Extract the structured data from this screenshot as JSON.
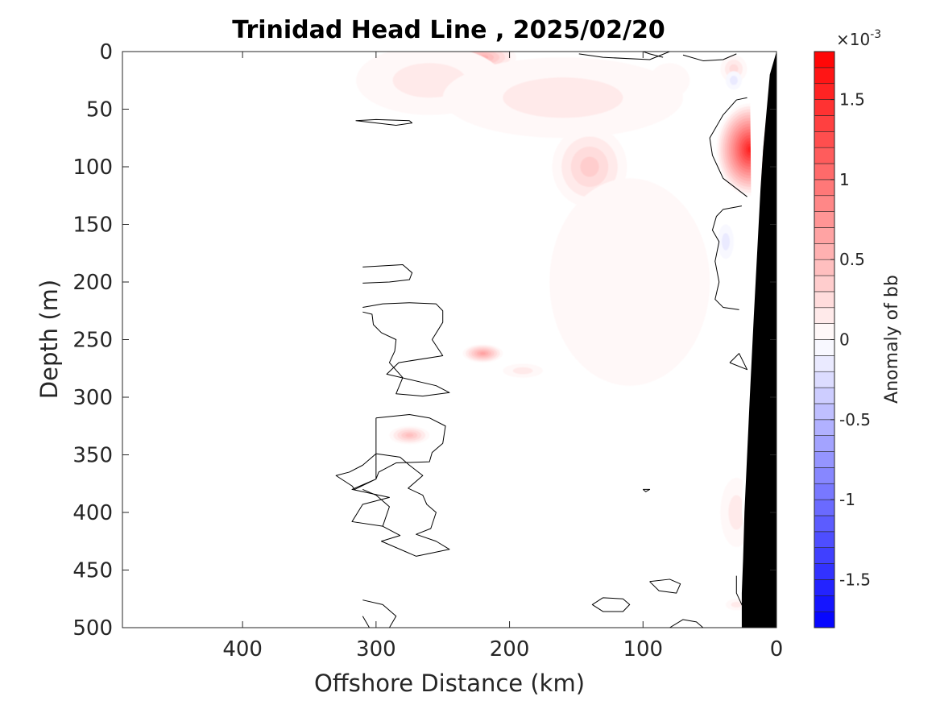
{
  "chart_data": {
    "type": "contourf",
    "title": "Trinidad Head Line , 2025/02/20",
    "xlabel": "Offshore Distance (km)",
    "ylabel": "Depth (m)",
    "xlim": [
      490,
      0
    ],
    "ylim": [
      0,
      500
    ],
    "x_reversed": true,
    "y_reversed": true,
    "x_ticks": [
      400,
      300,
      200,
      100,
      0
    ],
    "y_ticks": [
      0,
      50,
      100,
      150,
      200,
      250,
      300,
      350,
      400,
      450,
      500
    ],
    "x_tick_labels": [
      "400",
      "300",
      "200",
      "100",
      "0"
    ],
    "y_tick_labels": [
      "0",
      "50",
      "100",
      "150",
      "200",
      "250",
      "300",
      "350",
      "400",
      "450",
      "500"
    ],
    "data_extent_km": [
      0,
      310
    ],
    "colorbar": {
      "label": "Anomaly of bb",
      "exponent_label": "×10",
      "exponent_power": "-3",
      "limits": [
        -1.8,
        1.8
      ],
      "ticks": [
        -1.5,
        -1,
        -0.5,
        0,
        0.5,
        1,
        1.5
      ],
      "tick_labels": [
        "-1.5",
        "-1",
        "-0.5",
        "0",
        "0.5",
        "1",
        "1.5"
      ],
      "levels": 36,
      "colormap": "blue-white-red",
      "negative_color": "#0000ff",
      "positive_color": "#ff0000",
      "neutral_color": "#ffffff"
    },
    "anomaly_features": [
      {
        "x_km": 220,
        "depth_m": 5,
        "value": 0.6,
        "rx_km": 25,
        "ry_m": 12
      },
      {
        "x_km": 260,
        "depth_m": 25,
        "value": 0.2,
        "rx_km": 55,
        "ry_m": 30
      },
      {
        "x_km": 160,
        "depth_m": 40,
        "value": 0.15,
        "rx_km": 90,
        "ry_m": 35
      },
      {
        "x_km": 140,
        "depth_m": 100,
        "value": 0.35,
        "rx_km": 28,
        "ry_m": 35
      },
      {
        "x_km": 110,
        "depth_m": 200,
        "value": 0.1,
        "rx_km": 60,
        "ry_m": 90
      },
      {
        "x_km": 20,
        "depth_m": 85,
        "value": 1.6,
        "rx_km": 25,
        "ry_m": 40
      },
      {
        "x_km": 32,
        "depth_m": 15,
        "value": 0.25,
        "rx_km": 10,
        "ry_m": 12
      },
      {
        "x_km": 80,
        "depth_m": 25,
        "value": 0.1,
        "rx_km": 15,
        "ry_m": 15
      },
      {
        "x_km": 220,
        "depth_m": 262,
        "value": 0.7,
        "rx_km": 15,
        "ry_m": 8
      },
      {
        "x_km": 275,
        "depth_m": 333,
        "value": 0.45,
        "rx_km": 15,
        "ry_m": 8
      },
      {
        "x_km": 190,
        "depth_m": 277,
        "value": 0.15,
        "rx_km": 15,
        "ry_m": 6
      },
      {
        "x_km": 30,
        "depth_m": 400,
        "value": 0.12,
        "rx_km": 12,
        "ry_m": 30
      },
      {
        "x_km": 30,
        "depth_m": 480,
        "value": 0.2,
        "rx_km": 8,
        "ry_m": 5
      },
      {
        "x_km": 32,
        "depth_m": 25,
        "value": -0.15,
        "rx_km": 6,
        "ry_m": 8
      },
      {
        "x_km": 38,
        "depth_m": 165,
        "value": -0.2,
        "rx_km": 6,
        "ry_m": 15
      }
    ],
    "zero_contours": [
      [
        [
          310,
          187
        ],
        [
          280,
          185
        ],
        [
          273,
          192
        ],
        [
          275,
          198
        ],
        [
          290,
          200
        ],
        [
          310,
          201
        ]
      ],
      [
        [
          310,
          222
        ],
        [
          295,
          219
        ],
        [
          275,
          218
        ],
        [
          255,
          219
        ],
        [
          250,
          225
        ],
        [
          250,
          235
        ],
        [
          258,
          250
        ],
        [
          250,
          264
        ],
        [
          283,
          270
        ],
        [
          292,
          280
        ],
        [
          255,
          290
        ],
        [
          245,
          296
        ],
        [
          265,
          299
        ],
        [
          285,
          297
        ],
        [
          280,
          283
        ],
        [
          290,
          270
        ],
        [
          286,
          260
        ],
        [
          285,
          250
        ],
        [
          296,
          244
        ],
        [
          302,
          237
        ],
        [
          303,
          228
        ],
        [
          310,
          226
        ]
      ],
      [
        [
          310,
          247
        ]
      ],
      [
        [
          275,
          60
        ],
        [
          300,
          59
        ],
        [
          315,
          60
        ],
        [
          300,
          62
        ],
        [
          285,
          64
        ],
        [
          273,
          62
        ],
        [
          275,
          60
        ]
      ],
      [
        [
          300,
          318
        ],
        [
          275,
          315
        ],
        [
          260,
          318
        ],
        [
          248,
          325
        ],
        [
          250,
          340
        ],
        [
          258,
          348
        ],
        [
          260,
          356
        ],
        [
          285,
          357
        ],
        [
          298,
          365
        ],
        [
          300,
          371
        ],
        [
          318,
          380
        ],
        [
          290,
          387
        ],
        [
          310,
          393
        ],
        [
          318,
          408
        ],
        [
          295,
          412
        ],
        [
          282,
          420
        ],
        [
          296,
          425
        ],
        [
          270,
          438
        ],
        [
          245,
          432
        ],
        [
          255,
          425
        ],
        [
          270,
          419
        ],
        [
          259,
          414
        ],
        [
          255,
          400
        ],
        [
          262,
          393
        ],
        [
          265,
          385
        ],
        [
          276,
          379
        ],
        [
          265,
          368
        ],
        [
          275,
          359
        ],
        [
          282,
          352
        ],
        [
          300,
          349
        ],
        [
          310,
          359
        ],
        [
          320,
          365
        ],
        [
          330,
          368
        ],
        [
          318,
          377
        ],
        [
          316,
          380
        ],
        [
          300,
          371
        ],
        [
          300,
          318
        ]
      ],
      [
        [
          310,
          380
        ],
        [
          300,
          385
        ],
        [
          290,
          395
        ],
        [
          295,
          412
        ]
      ],
      [
        [
          310,
          476
        ],
        [
          295,
          480
        ],
        [
          285,
          490
        ],
        [
          290,
          500
        ]
      ],
      [
        [
          310,
          490
        ],
        [
          305,
          500
        ]
      ],
      [
        [
          130,
          474
        ],
        [
          115,
          475
        ],
        [
          110,
          480
        ],
        [
          115,
          486
        ],
        [
          130,
          486
        ],
        [
          138,
          480
        ],
        [
          130,
          474
        ]
      ],
      [
        [
          95,
          460
        ],
        [
          80,
          458
        ],
        [
          72,
          462
        ],
        [
          75,
          470
        ],
        [
          88,
          468
        ],
        [
          95,
          460
        ]
      ],
      [
        [
          100,
          380
        ],
        [
          95,
          380
        ],
        [
          98,
          382
        ],
        [
          100,
          380
        ]
      ],
      [
        [
          80,
          500
        ],
        [
          70,
          493
        ],
        [
          60,
          495
        ],
        [
          55,
          500
        ]
      ],
      [
        [
          26,
          134
        ],
        [
          40,
          137
        ],
        [
          45,
          143
        ],
        [
          48,
          155
        ],
        [
          43,
          165
        ],
        [
          46,
          182
        ],
        [
          43,
          200
        ],
        [
          46,
          215
        ],
        [
          40,
          222
        ],
        [
          28,
          224
        ]
      ],
      [
        [
          22,
          126
        ],
        [
          40,
          110
        ],
        [
          48,
          90
        ],
        [
          50,
          75
        ],
        [
          40,
          55
        ],
        [
          30,
          42
        ],
        [
          22,
          40
        ]
      ],
      [
        [
          85,
          5
        ],
        [
          95,
          2
        ],
        [
          100,
          0
        ]
      ],
      [
        [
          80,
          0
        ],
        [
          95,
          7
        ],
        [
          130,
          5
        ],
        [
          148,
          2
        ]
      ],
      [
        [
          70,
          3
        ],
        [
          55,
          8
        ],
        [
          40,
          7
        ],
        [
          30,
          2
        ]
      ],
      [
        [
          35,
          270
        ],
        [
          22,
          276
        ],
        [
          28,
          262
        ],
        [
          35,
          270
        ]
      ],
      [
        [
          30,
          455
        ],
        [
          30,
          470
        ],
        [
          26,
          480
        ],
        [
          22,
          490
        ]
      ]
    ],
    "seafloor_polygon": [
      [
        0,
        0
      ],
      [
        5,
        20
      ],
      [
        10,
        85
      ],
      [
        12,
        120
      ],
      [
        17,
        230
      ],
      [
        20,
        300
      ],
      [
        24,
        400
      ],
      [
        25,
        440
      ],
      [
        26,
        470
      ],
      [
        26,
        500
      ],
      [
        0,
        500
      ]
    ],
    "coastal_gap_polygon": [
      [
        0,
        0
      ],
      [
        20,
        0
      ],
      [
        19,
        130
      ],
      [
        18,
        170
      ],
      [
        20,
        230
      ],
      [
        23,
        300
      ],
      [
        25,
        360
      ],
      [
        26,
        400
      ],
      [
        22,
        440
      ],
      [
        25,
        470
      ],
      [
        26,
        500
      ],
      [
        26,
        470
      ],
      [
        25,
        440
      ],
      [
        24,
        400
      ],
      [
        20,
        300
      ],
      [
        17,
        230
      ],
      [
        12,
        120
      ],
      [
        10,
        85
      ],
      [
        5,
        20
      ],
      [
        0,
        0
      ]
    ]
  }
}
